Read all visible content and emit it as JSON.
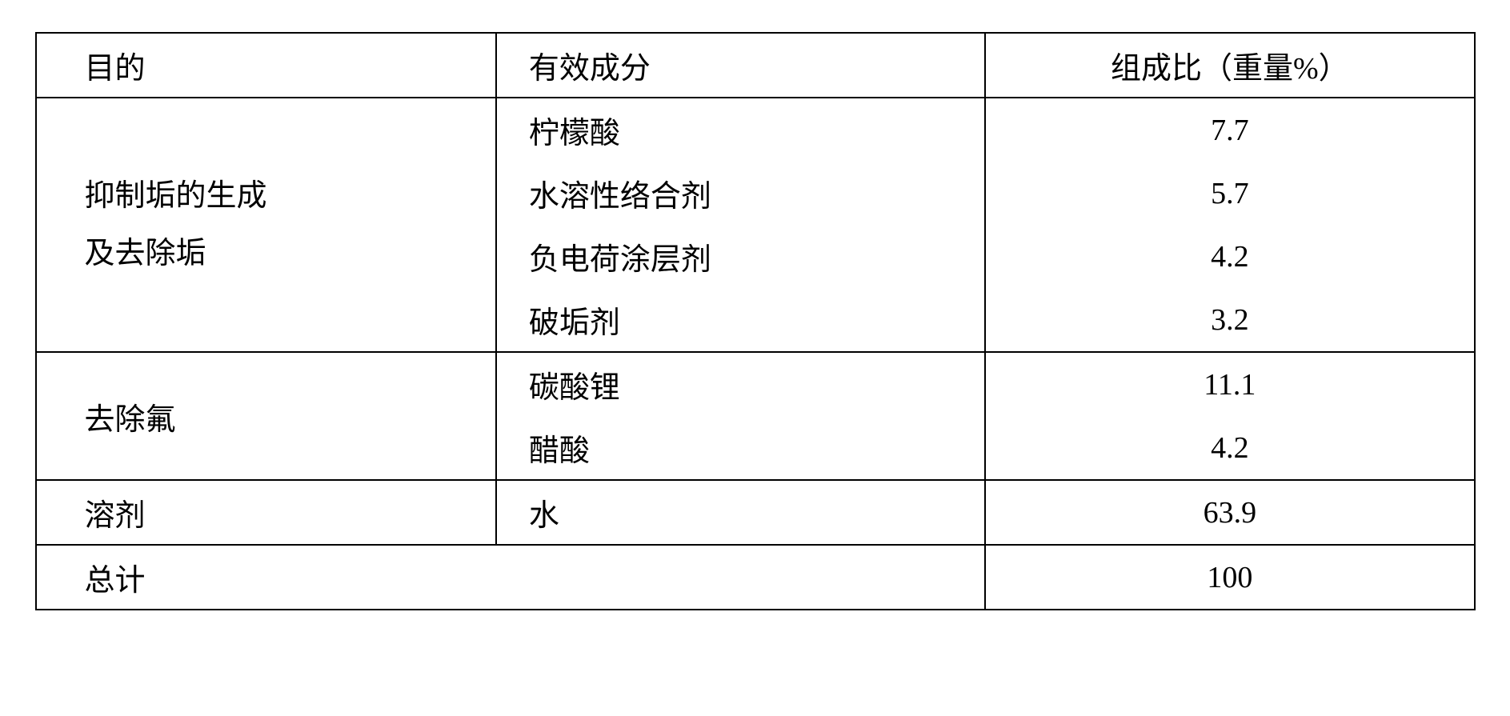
{
  "table": {
    "headers": {
      "purpose": "目的",
      "ingredient": "有效成分",
      "ratio": "组成比（重量%）"
    },
    "rows": [
      {
        "purpose": "抑制垢的生成\n及去除垢",
        "ingredients": [
          {
            "name": "柠檬酸",
            "ratio": "7.7"
          },
          {
            "name": "水溶性络合剂",
            "ratio": "5.7"
          },
          {
            "name": "负电荷涂层剂",
            "ratio": "4.2"
          },
          {
            "name": "破垢剂",
            "ratio": "3.2"
          }
        ]
      },
      {
        "purpose": "去除氟",
        "ingredients": [
          {
            "name": "碳酸锂",
            "ratio": "11.1"
          },
          {
            "name": "醋酸",
            "ratio": "4.2"
          }
        ]
      },
      {
        "purpose": "溶剂",
        "ingredients": [
          {
            "name": "水",
            "ratio": "63.9"
          }
        ]
      }
    ],
    "total": {
      "label": "总计",
      "value": "100"
    },
    "colors": {
      "border": "#000000",
      "text": "#000000",
      "background": "#ffffff"
    },
    "font_size": 38,
    "border_width": 2
  }
}
